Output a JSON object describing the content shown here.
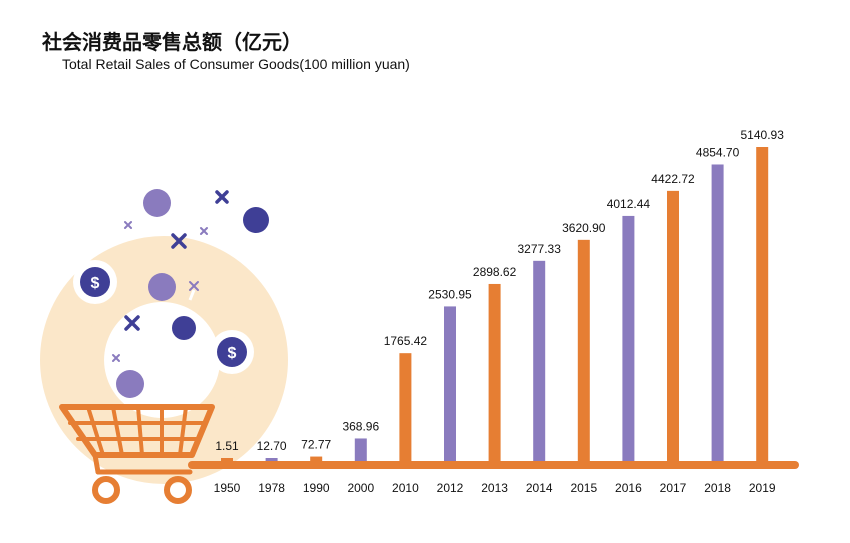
{
  "title": "社会消费品零售总额（亿元）",
  "subtitle": "Total Retail Sales of Consumer Goods(100 million yuan)",
  "colors": {
    "orange": "#E67E33",
    "purple": "#8A7BBE",
    "navy": "#3F3F96",
    "cream": "#FBE7C9"
  },
  "illustration": {
    "dollar_symbol": "$"
  },
  "chart_data": {
    "type": "bar",
    "categories": [
      "1950",
      "1978",
      "1990",
      "2000",
      "2010",
      "2012",
      "2013",
      "2014",
      "2015",
      "2016",
      "2017",
      "2018",
      "2019"
    ],
    "values": [
      1.51,
      12.7,
      72.77,
      368.96,
      1765.42,
      2530.95,
      2898.62,
      3277.33,
      3620.9,
      4012.44,
      4422.72,
      4854.7,
      5140.93
    ],
    "value_labels": [
      "1.51",
      "12.70",
      "72.77",
      "368.96",
      "1765.42",
      "2530.95",
      "2898.62",
      "3277.33",
      "3620.90",
      "4012.44",
      "4422.72",
      "4854.70",
      "5140.93"
    ],
    "bar_colors": [
      "orange",
      "purple",
      "orange",
      "purple",
      "orange",
      "purple",
      "orange",
      "purple",
      "orange",
      "purple",
      "orange",
      "purple",
      "orange"
    ],
    "title": "社会消费品零售总额（亿元）",
    "subtitle": "Total Retail Sales of Consumer Goods(100 million yuan)",
    "grid": false
  }
}
